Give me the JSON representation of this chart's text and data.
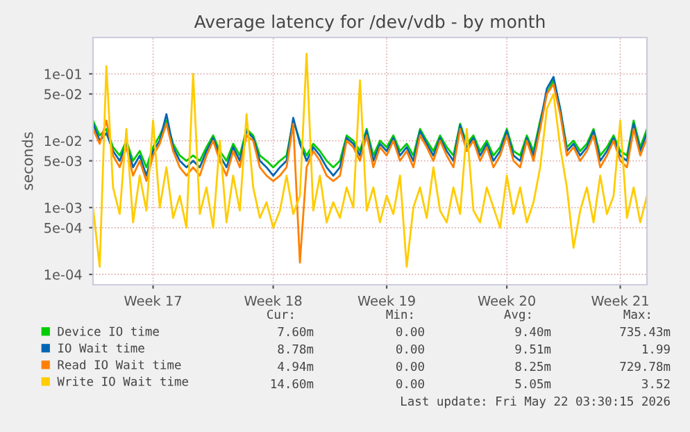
{
  "chart_data": {
    "type": "line",
    "title": "Average latency for /dev/vdb - by month",
    "ylabel": "seconds",
    "log": "y",
    "grid": true,
    "legend": "bottom",
    "line_style": "solid",
    "marker": "none",
    "categories": [
      null,
      null,
      null,
      null,
      null,
      null,
      null,
      null,
      null,
      "Week 17",
      null,
      null,
      null,
      null,
      null,
      null,
      null,
      null,
      null,
      null,
      null,
      null,
      null,
      null,
      null,
      null,
      null,
      "Week 18",
      null,
      null,
      null,
      null,
      null,
      null,
      null,
      null,
      null,
      null,
      null,
      null,
      null,
      null,
      null,
      null,
      "Week 19",
      null,
      null,
      null,
      null,
      null,
      null,
      null,
      null,
      null,
      null,
      null,
      null,
      null,
      null,
      null,
      null,
      null,
      "Week 20",
      null,
      null,
      null,
      null,
      null,
      null,
      null,
      null,
      null,
      null,
      null,
      null,
      null,
      null,
      null,
      null,
      "Week 21",
      null,
      null,
      null,
      null
    ],
    "ylim": [
      7e-05,
      0.35
    ],
    "yticks": [
      {
        "value": 0.0001,
        "label": "1e-04"
      },
      {
        "value": 0.0005,
        "label": "5e-04"
      },
      {
        "value": 0.001,
        "label": "1e-03"
      },
      {
        "value": 0.005,
        "label": "5e-03"
      },
      {
        "value": 0.01,
        "label": "1e-02"
      },
      {
        "value": 0.05,
        "label": "5e-02"
      },
      {
        "value": 0.1,
        "label": "1e-01"
      }
    ],
    "series": [
      {
        "name": "Device IO time",
        "color": "#00cc00",
        "values": [
          0.02,
          0.012,
          0.015,
          0.008,
          0.006,
          0.01,
          0.005,
          0.007,
          0.004,
          0.008,
          0.012,
          0.02,
          0.009,
          0.006,
          0.005,
          0.006,
          0.005,
          0.008,
          0.012,
          0.007,
          0.005,
          0.009,
          0.006,
          0.015,
          0.012,
          0.006,
          0.005,
          0.004,
          0.005,
          0.006,
          0.02,
          0.01,
          0.006,
          0.009,
          0.007,
          0.005,
          0.004,
          0.005,
          0.012,
          0.01,
          0.007,
          0.015,
          0.006,
          0.01,
          0.008,
          0.012,
          0.007,
          0.009,
          0.006,
          0.015,
          0.01,
          0.007,
          0.012,
          0.008,
          0.006,
          0.018,
          0.009,
          0.012,
          0.007,
          0.01,
          0.006,
          0.008,
          0.015,
          0.007,
          0.006,
          0.012,
          0.007,
          0.02,
          0.05,
          0.08,
          0.03,
          0.008,
          0.01,
          0.007,
          0.009,
          0.015,
          0.006,
          0.008,
          0.012,
          0.007,
          0.006,
          0.02,
          0.008,
          0.015
        ]
      },
      {
        "name": "IO Wait time",
        "color": "#0066b3",
        "values": [
          0.018,
          0.01,
          0.013,
          0.007,
          0.005,
          0.009,
          0.004,
          0.006,
          0.003,
          0.007,
          0.01,
          0.025,
          0.008,
          0.005,
          0.004,
          0.005,
          0.004,
          0.007,
          0.011,
          0.006,
          0.004,
          0.008,
          0.005,
          0.014,
          0.011,
          0.005,
          0.004,
          0.003,
          0.004,
          0.005,
          0.022,
          0.009,
          0.005,
          0.008,
          0.006,
          0.004,
          0.003,
          0.004,
          0.011,
          0.009,
          0.006,
          0.014,
          0.005,
          0.009,
          0.007,
          0.011,
          0.006,
          0.008,
          0.005,
          0.014,
          0.009,
          0.006,
          0.011,
          0.007,
          0.005,
          0.017,
          0.008,
          0.011,
          0.006,
          0.009,
          0.005,
          0.007,
          0.014,
          0.006,
          0.005,
          0.011,
          0.006,
          0.018,
          0.06,
          0.09,
          0.03,
          0.007,
          0.009,
          0.006,
          0.008,
          0.014,
          0.005,
          0.007,
          0.011,
          0.006,
          0.005,
          0.018,
          0.007,
          0.013
        ]
      },
      {
        "name": "Read IO Wait time",
        "color": "#ff8000",
        "values": [
          0.015,
          0.009,
          0.02,
          0.006,
          0.004,
          0.008,
          0.003,
          0.005,
          0.0025,
          0.006,
          0.009,
          0.018,
          0.007,
          0.004,
          0.003,
          0.004,
          0.003,
          0.006,
          0.01,
          0.005,
          0.003,
          0.007,
          0.004,
          0.012,
          0.01,
          0.004,
          0.003,
          0.0025,
          0.003,
          0.004,
          0.018,
          0.00015,
          0.004,
          0.007,
          0.005,
          0.003,
          0.0025,
          0.003,
          0.01,
          0.008,
          0.005,
          0.012,
          0.004,
          0.008,
          0.006,
          0.01,
          0.005,
          0.007,
          0.004,
          0.012,
          0.008,
          0.005,
          0.01,
          0.006,
          0.004,
          0.015,
          0.007,
          0.01,
          0.005,
          0.008,
          0.004,
          0.006,
          0.012,
          0.005,
          0.004,
          0.01,
          0.005,
          0.015,
          0.05,
          0.07,
          0.025,
          0.006,
          0.008,
          0.005,
          0.007,
          0.012,
          0.004,
          0.006,
          0.01,
          0.005,
          0.004,
          0.015,
          0.006,
          0.011
        ]
      },
      {
        "name": "Write IO Wait time",
        "color": "#ffcc00",
        "values": [
          0.001,
          0.00013,
          0.13,
          0.002,
          0.0008,
          0.015,
          0.0006,
          0.003,
          0.0009,
          0.02,
          0.001,
          0.004,
          0.0007,
          0.0015,
          0.0005,
          0.1,
          0.0008,
          0.002,
          0.0005,
          0.01,
          0.0006,
          0.003,
          0.0009,
          0.025,
          0.002,
          0.0007,
          0.0012,
          0.0005,
          0.0009,
          0.003,
          0.0008,
          0.0015,
          0.2,
          0.0009,
          0.003,
          0.0006,
          0.0012,
          0.0007,
          0.002,
          0.001,
          0.08,
          0.0009,
          0.002,
          0.0006,
          0.0015,
          0.0008,
          0.003,
          0.00013,
          0.001,
          0.002,
          0.0007,
          0.004,
          0.0009,
          0.0006,
          0.002,
          0.0008,
          0.015,
          0.0009,
          0.0006,
          0.002,
          0.001,
          0.0005,
          0.003,
          0.0008,
          0.002,
          0.0006,
          0.0012,
          0.004,
          0.03,
          0.05,
          0.008,
          0.002,
          0.00025,
          0.0009,
          0.002,
          0.0006,
          0.003,
          0.0008,
          0.0015,
          0.02,
          0.0007,
          0.002,
          0.0006,
          0.0015
        ]
      }
    ],
    "annotations": [
      "Cur:",
      "Min:",
      "Avg:",
      "Max:",
      "7.60m",
      "0.00",
      "9.40m",
      "735.43m",
      "8.78m",
      "0.00",
      "9.51m",
      "1.99",
      "4.94m",
      "0.00",
      "8.25m",
      "729.78m",
      "14.60m",
      "0.00",
      "5.05m",
      "3.52",
      "Last update: Fri May 22 03:30:15 2026"
    ]
  }
}
